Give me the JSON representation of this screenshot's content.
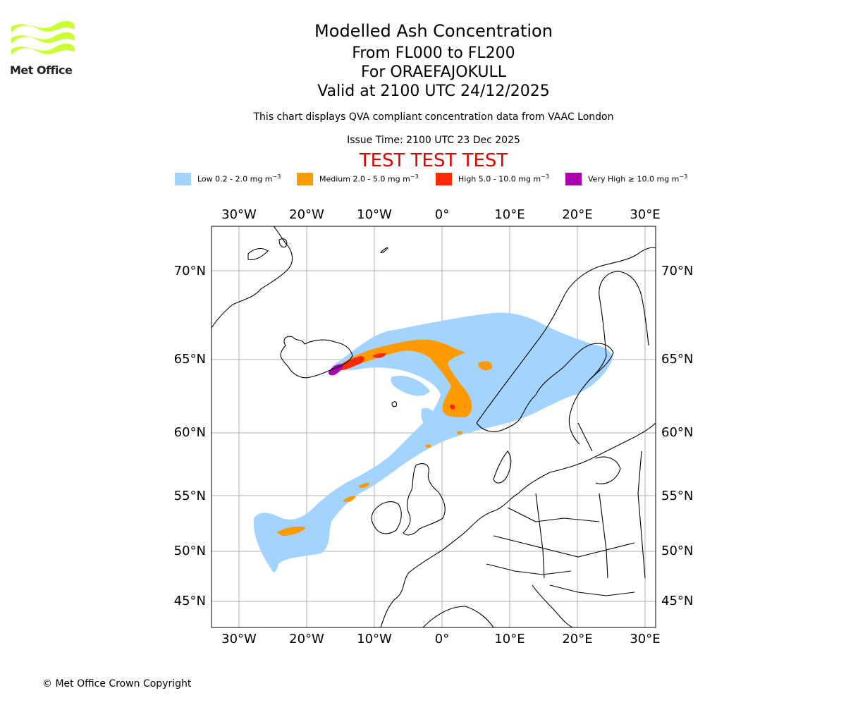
{
  "header": {
    "title": "Modelled Ash Concentration",
    "levels": "From FL000 to FL200",
    "volcano": "For ORAEFAJOKULL",
    "valid": "Valid at 2100 UTC 24/12/2025",
    "disclaimer": "This chart displays QVA compliant concentration data from VAAC London",
    "issue_time": "Issue Time: 2100 UTC 23 Dec 2025",
    "test_banner": "TEST TEST TEST"
  },
  "logo": {
    "text": "Met Office",
    "color": "#ccff33"
  },
  "legend": [
    {
      "label": "Low 0.2 - 2.0 mg m",
      "color": "#a3d3ff"
    },
    {
      "label": "Medium 2.0 - 5.0 mg m",
      "color": "#ff9a00"
    },
    {
      "label": "High 5.0 - 10.0 mg m",
      "color": "#ff2a00"
    },
    {
      "label": "Very High ≥ 10.0 mg m",
      "color": "#aa00b0"
    }
  ],
  "legend_unit_exponent": "−3",
  "map": {
    "lon_ticks": [
      "30°W",
      "20°W",
      "10°W",
      "0°",
      "10°E",
      "20°E",
      "30°E"
    ],
    "lat_ticks": [
      "70°N",
      "65°N",
      "60°N",
      "55°N",
      "50°N",
      "45°N"
    ],
    "grid": true
  },
  "footer": {
    "copyright": "© Met Office Crown Copyright"
  }
}
